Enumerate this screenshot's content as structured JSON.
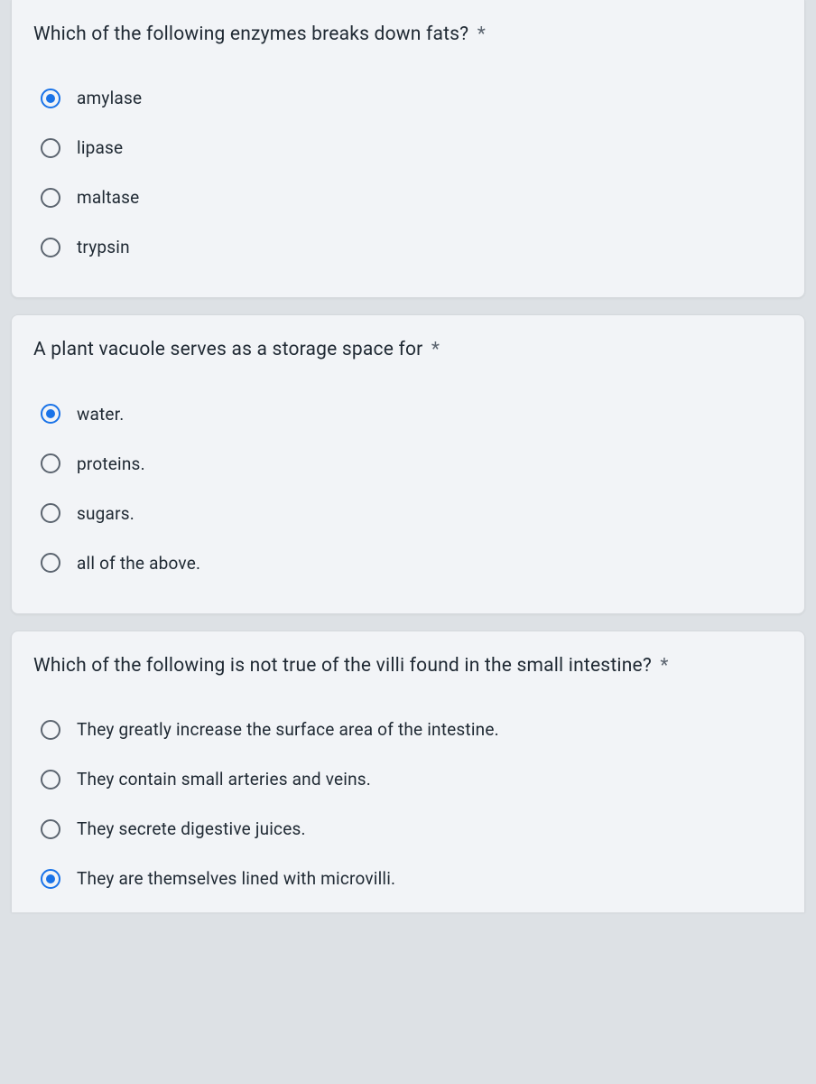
{
  "questions": [
    {
      "prompt": "Which of the following enzymes breaks down fats?",
      "required": true,
      "selected_index": 0,
      "options": [
        "amylase",
        "lipase",
        "maltase",
        "trypsin"
      ]
    },
    {
      "prompt": "A plant vacuole serves as a storage space for",
      "required": true,
      "selected_index": 0,
      "options": [
        "water.",
        "proteins.",
        "sugars.",
        "all of the above."
      ]
    },
    {
      "prompt": "Which of the following is not true of the villi found in the small intestine?",
      "required": true,
      "selected_index": 3,
      "options": [
        "They greatly increase the surface area of the intestine.",
        "They contain small arteries and veins.",
        "They secrete digestive juices.",
        "They are themselves lined with microvilli."
      ]
    }
  ],
  "colors": {
    "card_bg": "#f2f4f7",
    "page_bg": "#dde1e5",
    "text": "#1f2933",
    "radio_border": "#5c6570",
    "radio_selected": "#1a73e8"
  }
}
